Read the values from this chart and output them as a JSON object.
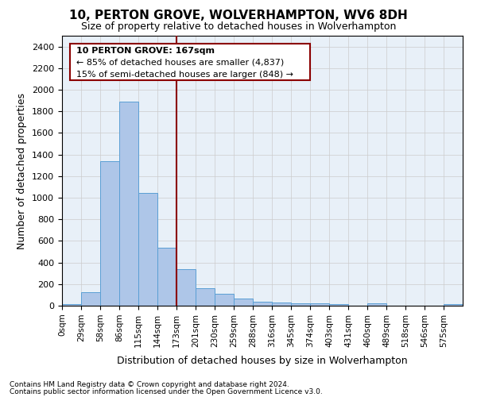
{
  "title": "10, PERTON GROVE, WOLVERHAMPTON, WV6 8DH",
  "subtitle": "Size of property relative to detached houses in Wolverhampton",
  "xlabel": "Distribution of detached houses by size in Wolverhampton",
  "ylabel": "Number of detached properties",
  "bar_color": "#aec6e8",
  "bar_edge_color": "#5a9fd4",
  "background_color": "#ffffff",
  "grid_color": "#cccccc",
  "bin_labels": [
    "0sqm",
    "29sqm",
    "58sqm",
    "86sqm",
    "115sqm",
    "144sqm",
    "173sqm",
    "201sqm",
    "230sqm",
    "259sqm",
    "288sqm",
    "316sqm",
    "345sqm",
    "374sqm",
    "403sqm",
    "431sqm",
    "460sqm",
    "489sqm",
    "518sqm",
    "546sqm",
    "575sqm"
  ],
  "bar_heights": [
    15,
    125,
    1340,
    1890,
    1045,
    540,
    335,
    165,
    110,
    65,
    40,
    30,
    25,
    20,
    15,
    0,
    20,
    0,
    0,
    0,
    15
  ],
  "ylim": [
    0,
    2500
  ],
  "yticks": [
    0,
    200,
    400,
    600,
    800,
    1000,
    1200,
    1400,
    1600,
    1800,
    2000,
    2200,
    2400
  ],
  "red_line_x": 6,
  "red_line_color": "#8b0000",
  "annotation_text_line1": "10 PERTON GROVE: 167sqm",
  "annotation_text_line2": "← 85% of detached houses are smaller (4,837)",
  "annotation_text_line3": "15% of semi-detached houses are larger (848) →",
  "annotation_box_color": "#8b0000",
  "footer_line1": "Contains HM Land Registry data © Crown copyright and database right 2024.",
  "footer_line2": "Contains public sector information licensed under the Open Government Licence v3.0."
}
